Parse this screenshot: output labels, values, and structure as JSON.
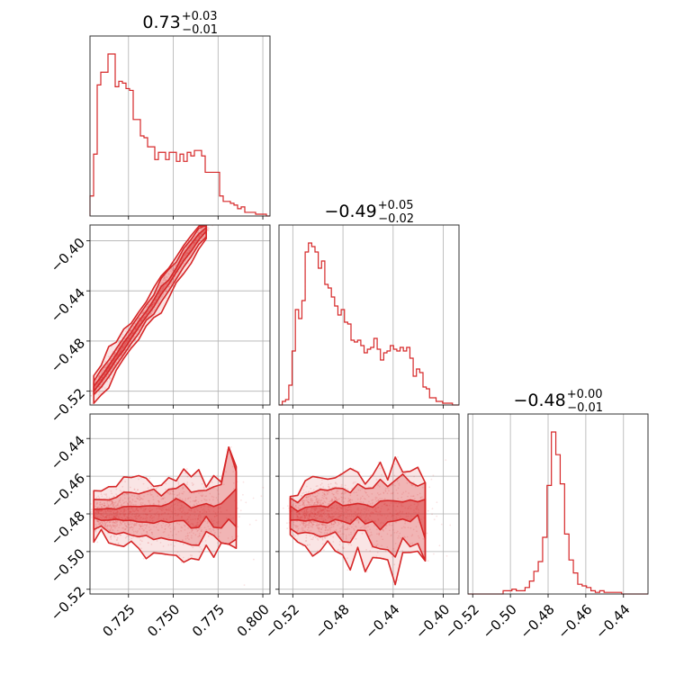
{
  "colors": {
    "series": "#d62728",
    "grid": "#b0b0b0",
    "frame": "#333333"
  },
  "chart_data": {
    "type": "corner",
    "parameters": [
      "p0",
      "p1",
      "p2"
    ],
    "titles": [
      {
        "median": "0.73",
        "plus": "+0.03",
        "minus": "−0.01"
      },
      {
        "median": "−0.49",
        "plus": "+0.05",
        "minus": "−0.02"
      },
      {
        "median": "−0.48",
        "plus": "+0.00",
        "minus": "−0.01"
      }
    ],
    "ranges": [
      [
        0.7035,
        0.804
      ],
      [
        -0.531,
        -0.3875
      ],
      [
        -0.5225,
        -0.427
      ]
    ],
    "ticks": [
      [
        0.725,
        0.75,
        0.775,
        0.8
      ],
      [
        -0.52,
        -0.48,
        -0.44,
        -0.4
      ],
      [
        -0.52,
        -0.5,
        -0.48,
        -0.46,
        -0.44
      ]
    ],
    "tick_labels": [
      [
        "0.725",
        "0.750",
        "0.775",
        "0.800"
      ],
      [
        "−0.52",
        "−0.48",
        "−0.44",
        "−0.40"
      ],
      [
        "−0.52",
        "−0.50",
        "−0.48",
        "−0.46",
        "−0.44"
      ]
    ],
    "histograms": [
      {
        "edges": [
          0.7035,
          0.804
        ],
        "heights": [
          0.11,
          0.34,
          0.72,
          0.79,
          0.79,
          0.89,
          0.89,
          0.71,
          0.74,
          0.73,
          0.7,
          0.69,
          0.53,
          0.53,
          0.44,
          0.43,
          0.38,
          0.38,
          0.31,
          0.35,
          0.35,
          0.31,
          0.35,
          0.35,
          0.3,
          0.34,
          0.3,
          0.35,
          0.33,
          0.36,
          0.36,
          0.33,
          0.24,
          0.24,
          0.24,
          0.24,
          0.11,
          0.08,
          0.08,
          0.07,
          0.06,
          0.04,
          0.05,
          0.02,
          0.02,
          0.02,
          0.01,
          0.01,
          0.01,
          0.0
        ]
      },
      {
        "edges": [
          -0.531,
          -0.3875
        ],
        "heights": [
          0.0,
          0.02,
          0.03,
          0.11,
          0.3,
          0.53,
          0.48,
          0.58,
          0.85,
          0.9,
          0.88,
          0.85,
          0.76,
          0.8,
          0.67,
          0.65,
          0.6,
          0.55,
          0.5,
          0.53,
          0.46,
          0.45,
          0.36,
          0.35,
          0.36,
          0.33,
          0.29,
          0.31,
          0.32,
          0.37,
          0.31,
          0.25,
          0.29,
          0.3,
          0.33,
          0.31,
          0.3,
          0.32,
          0.3,
          0.32,
          0.26,
          0.16,
          0.2,
          0.18,
          0.1,
          0.09,
          0.04,
          0.04,
          0.02,
          0.02,
          0.01,
          0.01,
          0.01,
          0.0,
          0.0
        ]
      },
      {
        "edges": [
          -0.5225,
          -0.427
        ],
        "heights": [
          0,
          0,
          0,
          0,
          0,
          0,
          0,
          0,
          0.02,
          0.02,
          0.03,
          0.02,
          0.02,
          0.04,
          0.08,
          0.14,
          0.2,
          0.35,
          0.67,
          1.0,
          0.86,
          0.68,
          0.37,
          0.21,
          0.13,
          0.06,
          0.05,
          0.04,
          0.02,
          0.01,
          0.02,
          0.01,
          0.01,
          0.01,
          0.01,
          0.0,
          0,
          0,
          0,
          0,
          0
        ]
      }
    ],
    "pairs": [
      {
        "x": 0,
        "y": 1,
        "relation": "linear",
        "y_at_x0": -0.5235,
        "slope": 2.09,
        "spread": 0.004
      },
      {
        "x": 0,
        "y": 2,
        "relation": "flat",
        "center": -0.48,
        "spread": 0.006
      },
      {
        "x": 1,
        "y": 2,
        "relation": "flat",
        "center": -0.48,
        "spread": 0.006
      }
    ],
    "samples_per_pair": 1400,
    "levels": [
      0.39,
      0.86,
      0.99
    ],
    "grid": true,
    "legend": "none"
  }
}
